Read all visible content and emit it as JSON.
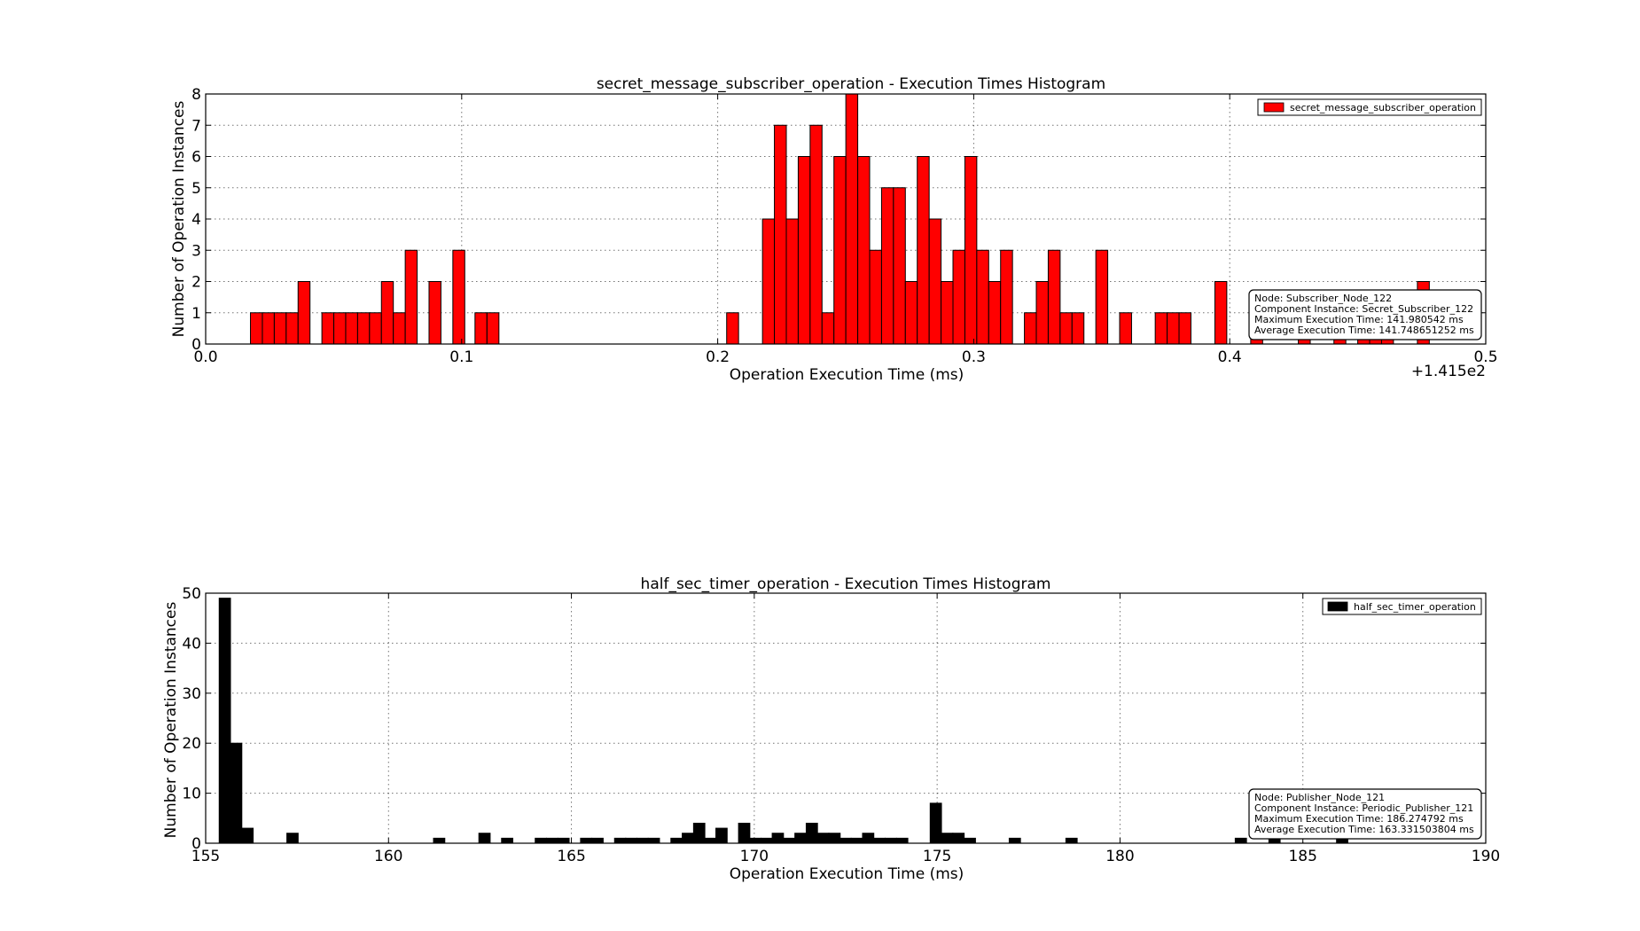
{
  "chart_data": [
    {
      "type": "bar",
      "title": "secret_message_subscriber_operation - Execution Times Histogram",
      "xlabel": "Operation Execution Time (ms)",
      "ylabel": "Number of Operation Instances",
      "x_offset_label": "+1.415e2",
      "x_ticks": [
        "0.0",
        "0.1",
        "0.2",
        "0.3",
        "0.4",
        "0.5"
      ],
      "x_tick_values": [
        0.0,
        0.1,
        0.2,
        0.3,
        0.4,
        0.5
      ],
      "y_ticks": [
        0,
        1,
        2,
        3,
        4,
        5,
        6,
        7,
        8
      ],
      "xlim": [
        0.0,
        0.5
      ],
      "ylim": [
        0,
        8
      ],
      "grid": true,
      "legend_position": "top-right",
      "series": [
        {
          "name": "secret_message_subscriber_operation",
          "color": "#ff0000",
          "bin_width": 0.00465,
          "bins": [
            [
              0.0175,
              1
            ],
            [
              0.02215,
              1
            ],
            [
              0.0268,
              1
            ],
            [
              0.03145,
              1
            ],
            [
              0.0361,
              2
            ],
            [
              0.0454,
              1
            ],
            [
              0.05005,
              1
            ],
            [
              0.0547,
              1
            ],
            [
              0.05935,
              1
            ],
            [
              0.064,
              1
            ],
            [
              0.06865,
              2
            ],
            [
              0.0733,
              1
            ],
            [
              0.07795,
              3
            ],
            [
              0.08725,
              2
            ],
            [
              0.09655,
              3
            ],
            [
              0.1052,
              1
            ],
            [
              0.1099,
              1
            ],
            [
              0.2035,
              1
            ],
            [
              0.2175,
              4
            ],
            [
              0.22215,
              7
            ],
            [
              0.2268,
              4
            ],
            [
              0.23145,
              6
            ],
            [
              0.2361,
              7
            ],
            [
              0.24075,
              1
            ],
            [
              0.2454,
              6
            ],
            [
              0.25005,
              8
            ],
            [
              0.2547,
              6
            ],
            [
              0.25935,
              3
            ],
            [
              0.264,
              5
            ],
            [
              0.26865,
              5
            ],
            [
              0.2733,
              2
            ],
            [
              0.27795,
              6
            ],
            [
              0.2826,
              4
            ],
            [
              0.28725,
              2
            ],
            [
              0.2919,
              3
            ],
            [
              0.29655,
              6
            ],
            [
              0.3012,
              3
            ],
            [
              0.30585,
              2
            ],
            [
              0.3105,
              3
            ],
            [
              0.3198,
              1
            ],
            [
              0.32445,
              2
            ],
            [
              0.3291,
              3
            ],
            [
              0.33375,
              1
            ],
            [
              0.3384,
              1
            ],
            [
              0.3477,
              3
            ],
            [
              0.357,
              1
            ],
            [
              0.3709,
              1
            ],
            [
              0.37555,
              1
            ],
            [
              0.3802,
              1
            ],
            [
              0.3942,
              2
            ],
            [
              0.4082,
              1
            ],
            [
              0.4268,
              1
            ],
            [
              0.4407,
              1
            ],
            [
              0.45,
              1
            ],
            [
              0.45465,
              1
            ],
            [
              0.4593,
              1
            ],
            [
              0.4733,
              2
            ]
          ]
        }
      ],
      "annotation": [
        "Node: Subscriber_Node_122",
        "Component Instance: Secret_Subscriber_122",
        "Maximum Execution Time: 141.980542 ms",
        "Average Execution Time: 141.748651252 ms"
      ]
    },
    {
      "type": "bar",
      "title": "half_sec_timer_operation - Execution Times Histogram",
      "xlabel": "Operation Execution Time (ms)",
      "ylabel": "Number of Operation Instances",
      "x_ticks": [
        "155",
        "160",
        "165",
        "170",
        "175",
        "180",
        "185",
        "190"
      ],
      "x_tick_values": [
        155,
        160,
        165,
        170,
        175,
        180,
        185,
        190
      ],
      "y_ticks": [
        0,
        10,
        20,
        30,
        40,
        50
      ],
      "xlim": [
        155,
        190
      ],
      "ylim": [
        0,
        50
      ],
      "grid": true,
      "legend_position": "top-right",
      "series": [
        {
          "name": "half_sec_timer_operation",
          "color": "#000000",
          "bin_width": 0.3087,
          "bins": [
            [
              155.37,
              49
            ],
            [
              155.68,
              20
            ],
            [
              155.99,
              3
            ],
            [
              157.22,
              2
            ],
            [
              161.23,
              1
            ],
            [
              162.47,
              2
            ],
            [
              163.09,
              1
            ],
            [
              164.01,
              1
            ],
            [
              164.32,
              1
            ],
            [
              164.63,
              1
            ],
            [
              165.25,
              1
            ],
            [
              165.56,
              1
            ],
            [
              166.18,
              1
            ],
            [
              166.48,
              1
            ],
            [
              166.79,
              1
            ],
            [
              167.1,
              1
            ],
            [
              167.72,
              1
            ],
            [
              168.03,
              2
            ],
            [
              168.34,
              4
            ],
            [
              168.64,
              1
            ],
            [
              168.95,
              3
            ],
            [
              169.57,
              4
            ],
            [
              169.88,
              1
            ],
            [
              170.19,
              1
            ],
            [
              170.49,
              2
            ],
            [
              170.8,
              1
            ],
            [
              171.11,
              2
            ],
            [
              171.42,
              4
            ],
            [
              171.73,
              2
            ],
            [
              172.04,
              2
            ],
            [
              172.34,
              1
            ],
            [
              172.65,
              1
            ],
            [
              172.96,
              2
            ],
            [
              173.27,
              1
            ],
            [
              173.58,
              1
            ],
            [
              173.89,
              1
            ],
            [
              174.81,
              8
            ],
            [
              175.12,
              2
            ],
            [
              175.43,
              2
            ],
            [
              175.74,
              1
            ],
            [
              176.97,
              1
            ],
            [
              178.52,
              1
            ],
            [
              183.15,
              1
            ],
            [
              184.07,
              1
            ],
            [
              185.92,
              1
            ]
          ]
        }
      ],
      "annotation": [
        "Node: Publisher_Node_121",
        "Component Instance: Periodic_Publisher_121",
        "Maximum Execution Time: 186.274792 ms",
        "Average Execution Time: 163.331503804 ms"
      ]
    }
  ]
}
